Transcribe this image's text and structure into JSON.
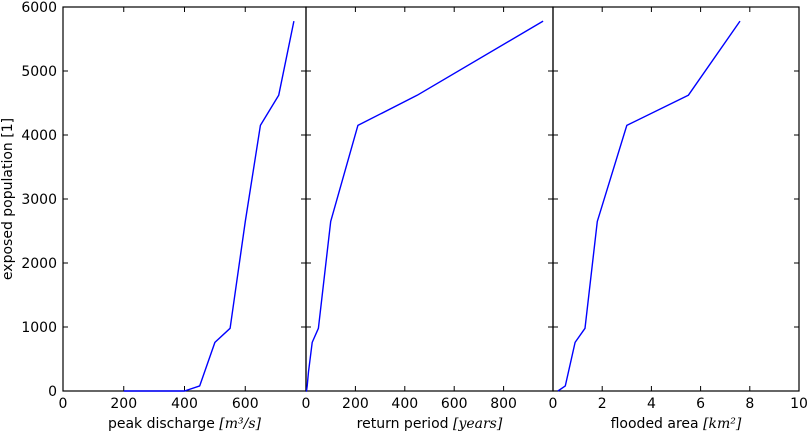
{
  "chart_data": [
    {
      "type": "line",
      "id": "panel-peak-discharge",
      "xlabel": "peak discharge",
      "xlabel_unit": "[m³/s]",
      "ylabel": "exposed population [1]",
      "xlim": [
        0,
        800
      ],
      "ylim": [
        0,
        6000
      ],
      "xticks": [
        0,
        200,
        400,
        600
      ],
      "yticks": [
        0,
        1000,
        2000,
        3000,
        4000,
        5000,
        6000
      ],
      "series": [
        {
          "color": "#0000ff",
          "x": [
            200,
            400,
            450,
            500,
            550,
            600,
            650,
            710,
            760
          ],
          "y": [
            0,
            0,
            80,
            760,
            980,
            2650,
            4150,
            4620,
            5780
          ]
        }
      ]
    },
    {
      "type": "line",
      "id": "panel-return-period",
      "xlabel": "return period",
      "xlabel_unit": "[years]",
      "xlim": [
        0,
        1000
      ],
      "ylim": [
        0,
        6000
      ],
      "xticks": [
        0,
        200,
        400,
        600,
        800
      ],
      "series": [
        {
          "color": "#0000ff",
          "x": [
            0,
            2,
            5,
            10,
            25,
            50,
            100,
            210,
            450,
            960
          ],
          "y": [
            0,
            0,
            80,
            300,
            760,
            980,
            2650,
            4150,
            4620,
            5780
          ]
        }
      ]
    },
    {
      "type": "line",
      "id": "panel-flooded-area",
      "xlabel": "flooded area",
      "xlabel_unit": "[km²]",
      "xlim": [
        0,
        10
      ],
      "ylim": [
        0,
        6000
      ],
      "xticks": [
        0,
        2,
        4,
        6,
        8,
        10
      ],
      "series": [
        {
          "color": "#0000ff",
          "x": [
            0.2,
            0.5,
            0.9,
            1.3,
            1.8,
            3.0,
            5.5,
            7.6
          ],
          "y": [
            0,
            80,
            760,
            980,
            2650,
            4150,
            4620,
            5780
          ]
        }
      ]
    }
  ]
}
